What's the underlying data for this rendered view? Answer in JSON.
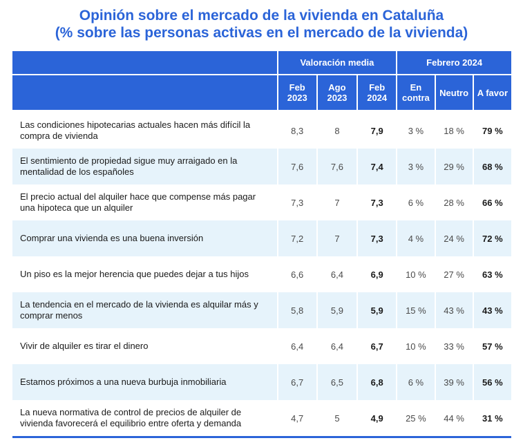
{
  "title": {
    "line1": "Opinión sobre el mercado de la vivienda en Cataluña",
    "line2": "(% sobre las personas activas en el mercado de la vivienda)"
  },
  "header": {
    "group1": "Valoración media",
    "group2": "Febrero 2024",
    "cols": [
      {
        "l1": "Feb",
        "l2": "2023"
      },
      {
        "l1": "Ago",
        "l2": "2023"
      },
      {
        "l1": "Feb",
        "l2": "2024"
      },
      {
        "l1": "En",
        "l2": "contra"
      },
      {
        "l1": "Neutro",
        "l2": ""
      },
      {
        "l1": "A favor",
        "l2": ""
      }
    ]
  },
  "rows": [
    {
      "label": "Las condiciones hipotecarias actuales hacen más difícil la compra de vivienda",
      "feb23": "8,3",
      "ago23": "8",
      "feb24": "7,9",
      "contra": "3 %",
      "neutro": "18 %",
      "favor": "79 %"
    },
    {
      "label": "El sentimiento de propiedad sigue muy arraigado en la mentalidad de los españoles",
      "feb23": "7,6",
      "ago23": "7,6",
      "feb24": "7,4",
      "contra": "3 %",
      "neutro": "29 %",
      "favor": "68 %"
    },
    {
      "label": "El precio actual del alquiler hace que compense más pagar una hipoteca que un alquiler",
      "feb23": "7,3",
      "ago23": "7",
      "feb24": "7,3",
      "contra": "6 %",
      "neutro": "28 %",
      "favor": "66 %"
    },
    {
      "label": "Comprar una vivienda es una buena inversión",
      "feb23": "7,2",
      "ago23": "7",
      "feb24": "7,3",
      "contra": "4 %",
      "neutro": "24 %",
      "favor": "72 %"
    },
    {
      "label": "Un piso es la mejor herencia que puedes dejar a tus hijos",
      "feb23": "6,6",
      "ago23": "6,4",
      "feb24": "6,9",
      "contra": "10 %",
      "neutro": "27 %",
      "favor": "63 %"
    },
    {
      "label": "La tendencia en el mercado de la vivienda es alquilar más y comprar menos",
      "feb23": "5,8",
      "ago23": "5,9",
      "feb24": "5,9",
      "contra": "15 %",
      "neutro": "43 %",
      "favor": "43 %"
    },
    {
      "label": "Vivir de alquiler es tirar el dinero",
      "feb23": "6,4",
      "ago23": "6,4",
      "feb24": "6,7",
      "contra": "10 %",
      "neutro": "33 %",
      "favor": "57 %"
    },
    {
      "label": "Estamos próximos a una nueva burbuja inmobiliaria",
      "feb23": "6,7",
      "ago23": "6,5",
      "feb24": "6,8",
      "contra": "6 %",
      "neutro": "39 %",
      "favor": "56 %"
    },
    {
      "label": "La nueva normativa de control de precios de alquiler de vivienda favorecerá el equilibrio entre oferta y demanda",
      "feb23": "4,7",
      "ago23": "5",
      "feb24": "4,9",
      "contra": "25 %",
      "neutro": "44 %",
      "favor": "31 %"
    }
  ]
}
